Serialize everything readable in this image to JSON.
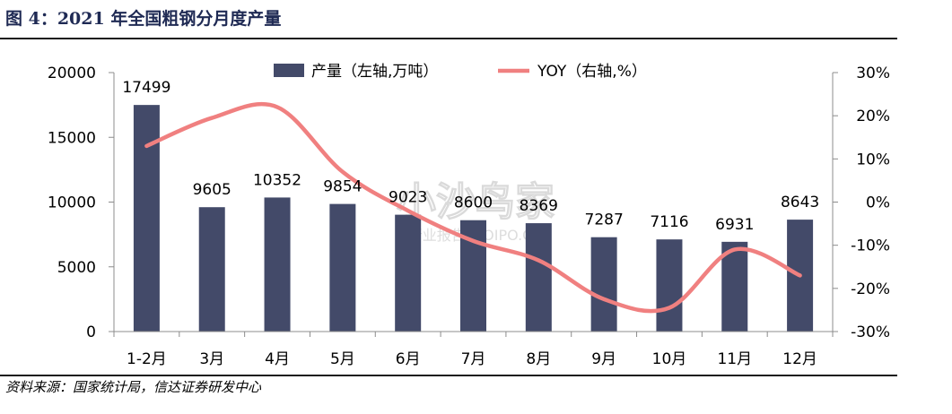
{
  "figure_title": "图 4：2021 年全国粗钢分月度产量",
  "source_note": "资料来源：国家统计局，信达证券研发中心",
  "watermark": {
    "main": "小沙鸟家",
    "sub": "行业报告 IPOIPO.CN"
  },
  "colors": {
    "bar": "#434a69",
    "line": "#f08080",
    "title": "#1f2a54"
  },
  "chart_data": {
    "type": "bar",
    "title": "",
    "categories": [
      "1-2月",
      "3月",
      "4月",
      "5月",
      "6月",
      "7月",
      "8月",
      "9月",
      "10月",
      "11月",
      "12月"
    ],
    "series": [
      {
        "name": "产量（左轴,万吨）",
        "type": "bar",
        "axis": "left",
        "values": [
          17499,
          9605,
          10352,
          9854,
          9023,
          8600,
          8369,
          7287,
          7116,
          6931,
          8643
        ],
        "data_labels": [
          "17499",
          "9605",
          "10352",
          "9854",
          "9023",
          "8600",
          "8369",
          "7287",
          "7116",
          "6931",
          "8643"
        ]
      },
      {
        "name": "YOY（右轴,%）",
        "type": "line",
        "axis": "right",
        "smooth": true,
        "values": [
          13,
          19.5,
          22,
          7,
          -2,
          -9,
          -13.5,
          -22.5,
          -24.5,
          -11,
          -17
        ]
      }
    ],
    "y_left": {
      "ylim": [
        0,
        20000
      ],
      "ticks": [
        0,
        5000,
        10000,
        15000,
        20000
      ],
      "tick_labels": [
        "0",
        "5000",
        "10000",
        "15000",
        "20000"
      ]
    },
    "y_right": {
      "ylim": [
        -30,
        30
      ],
      "ticks": [
        -30,
        -20,
        -10,
        0,
        10,
        20,
        30
      ],
      "tick_labels": [
        "-30%",
        "-20%",
        "-10%",
        "0%",
        "10%",
        "20%",
        "30%"
      ]
    },
    "grid": false,
    "legend_position": "top-center"
  }
}
